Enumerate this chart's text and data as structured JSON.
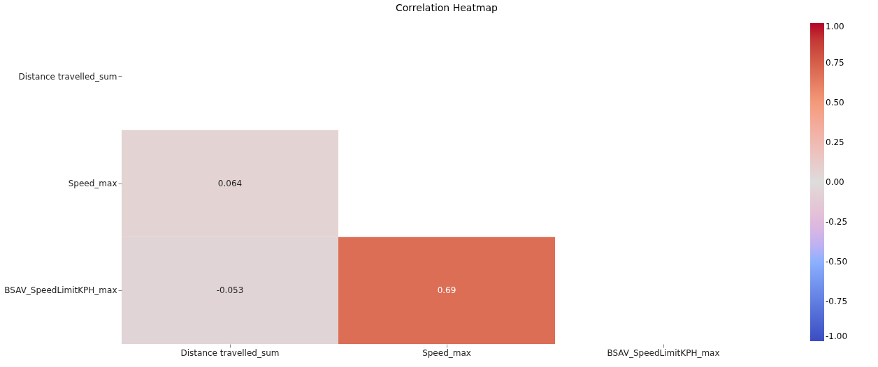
{
  "chart_data": {
    "type": "heatmap",
    "title": "Correlation Heatmap",
    "categories": [
      "Distance travelled_sum",
      "Speed_max",
      "BSAV_SpeedLimitKPH_max"
    ],
    "y_categories": [
      "Distance travelled_sum",
      "Speed_max",
      "BSAV_SpeedLimitKPH_max"
    ],
    "cells": [
      [
        null,
        null,
        null
      ],
      [
        0.064,
        null,
        null
      ],
      [
        -0.053,
        0.69,
        null
      ]
    ],
    "data_labels": true,
    "clim": [
      -1,
      1
    ],
    "cticks": [
      {
        "value": -1,
        "label": "-1.00"
      },
      {
        "value": -0.75,
        "label": "-0.75"
      },
      {
        "value": -0.5,
        "label": "-0.50"
      },
      {
        "value": -0.25,
        "label": "-0.25"
      },
      {
        "value": 0,
        "label": "0.00"
      },
      {
        "value": 0.25,
        "label": "0.25"
      },
      {
        "value": 0.5,
        "label": "0.50"
      },
      {
        "value": 0.75,
        "label": "0.75"
      },
      {
        "value": 1,
        "label": "1.00"
      }
    ]
  }
}
